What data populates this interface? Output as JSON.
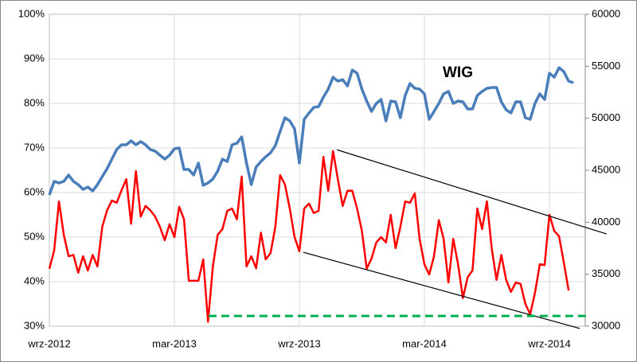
{
  "chart_data": {
    "type": "line",
    "annotations": [
      "WIG"
    ],
    "categories": [
      "wrz-2012",
      null,
      null,
      null,
      null,
      null,
      null,
      null,
      null,
      null,
      null,
      null,
      null,
      null,
      null,
      null,
      null,
      null,
      null,
      null,
      null,
      null,
      null,
      null,
      null,
      null,
      "mar-2013",
      null,
      null,
      null,
      null,
      null,
      null,
      null,
      null,
      null,
      null,
      null,
      null,
      null,
      null,
      null,
      null,
      null,
      null,
      null,
      null,
      null,
      null,
      null,
      null,
      null,
      "wrz-2013",
      null,
      null,
      null,
      null,
      null,
      null,
      null,
      null,
      null,
      null,
      null,
      null,
      null,
      null,
      null,
      null,
      null,
      null,
      null,
      null,
      null,
      null,
      null,
      null,
      null,
      "mar-2014",
      null,
      null,
      null,
      null,
      null,
      null,
      null,
      null,
      null,
      null,
      null,
      null,
      null,
      null,
      null,
      null,
      null,
      null,
      null,
      null,
      null,
      null,
      null,
      null,
      null,
      "wrz-2014",
      null,
      null,
      null,
      null,
      null,
      null,
      null
    ],
    "series": [
      {
        "name": "WIG",
        "color": "#4a7ebb",
        "axis": "y2",
        "values": [
          42630,
          43930,
          43780,
          43930,
          44540,
          43930,
          43620,
          43160,
          43390,
          43010,
          43620,
          44390,
          45150,
          46070,
          46990,
          47450,
          47450,
          47830,
          47450,
          47760,
          47450,
          46990,
          46840,
          46450,
          46070,
          46450,
          47070,
          47140,
          45080,
          45080,
          44540,
          45690,
          43550,
          43780,
          44160,
          44920,
          46070,
          45840,
          47450,
          47600,
          48210,
          45690,
          43620,
          45310,
          45840,
          46300,
          46680,
          47370,
          48750,
          50050,
          49750,
          48980,
          45690,
          49900,
          50510,
          51050,
          51120,
          52040,
          52810,
          53950,
          53570,
          53720,
          53110,
          54640,
          54340,
          52810,
          51660,
          50660,
          51430,
          51810,
          49750,
          51660,
          51580,
          50050,
          52190,
          53340,
          52880,
          52810,
          52350,
          49900,
          50660,
          51430,
          52350,
          52580,
          51430,
          51660,
          51580,
          50890,
          50890,
          52190,
          52580,
          52880,
          52960,
          52960,
          51580,
          50820,
          50510,
          51580,
          51580,
          50050,
          49900,
          51430,
          52350,
          51810,
          54340,
          53950,
          54870,
          54490,
          53570,
          53420,
          null,
          null
        ]
      },
      {
        "color": "#ff0000",
        "values": [
          42.9,
          47,
          58,
          50.5,
          45.7,
          46,
          42,
          45.7,
          42.5,
          46,
          43.4,
          52.3,
          56,
          58.2,
          57.7,
          60.5,
          63,
          53,
          64.8,
          54.6,
          57,
          56,
          54.6,
          52.3,
          49.3,
          52.9,
          50,
          56.8,
          54,
          40.2,
          40.2,
          40.2,
          45,
          31,
          43.4,
          50.5,
          51.8,
          55.9,
          56.4,
          54,
          63.6,
          43.4,
          45.7,
          43,
          51,
          45,
          46.4,
          52.3,
          63.9,
          61.8,
          56.4,
          50,
          46.8,
          56.4,
          57.5,
          55.4,
          55.9,
          68,
          60.4,
          69.3,
          63,
          57,
          60.4,
          60.4,
          56.4,
          51.4,
          42.9,
          45.2,
          48.8,
          50,
          48.8,
          55,
          47.5,
          52.3,
          58,
          57.7,
          59.8,
          49.6,
          43.9,
          41.6,
          45.7,
          53.8,
          49.6,
          39.8,
          49.6,
          43.9,
          36.3,
          41,
          42.5,
          56.4,
          51.8,
          58,
          47.5,
          40.4,
          46,
          40.4,
          37.7,
          39.8,
          39.5,
          35,
          32.7,
          37.5,
          43.9,
          43.7,
          55,
          51.4,
          50.2,
          44.3,
          38,
          null,
          null,
          null
        ]
      }
    ],
    "annotation_lines": [
      {
        "x": [
          59.8,
          115.9
        ],
        "y": [
          69.6,
          50.7
        ],
        "color": "#000000"
      },
      {
        "x": [
          52.8,
          110.3
        ],
        "y": [
          46.6,
          29.5
        ],
        "color": "#000000"
      },
      {
        "x": [
          33.1,
          112.3
        ],
        "y": [
          32.3,
          32.3
        ],
        "color": "#00b050",
        "dashed": true
      }
    ],
    "ylim": [
      30,
      100
    ],
    "yticks": [
      {
        "value": 30,
        "label": "30%"
      },
      {
        "value": 40,
        "label": "40%"
      },
      {
        "value": 50,
        "label": "50%"
      },
      {
        "value": 60,
        "label": "60%"
      },
      {
        "value": 70,
        "label": "70%"
      },
      {
        "value": 80,
        "label": "80%"
      },
      {
        "value": 90,
        "label": "90%"
      },
      {
        "value": 100,
        "label": "100%"
      }
    ],
    "y2lim": [
      30000,
      60000
    ],
    "y2ticks": [
      30000,
      35000,
      40000,
      45000,
      50000,
      55000,
      60000
    ],
    "grid": true
  }
}
